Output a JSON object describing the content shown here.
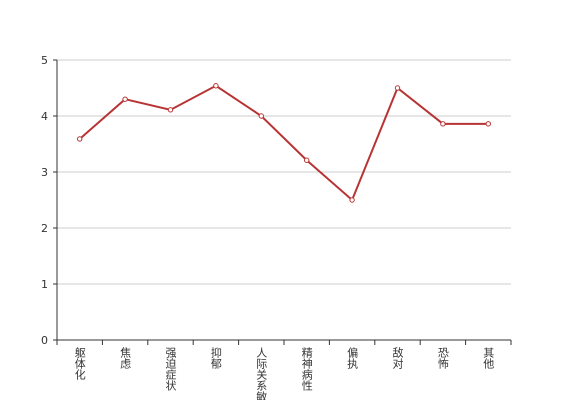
{
  "chart_data": {
    "type": "line",
    "categories": [
      "躯体化",
      "焦虑",
      "强迫症状",
      "抑郁",
      "人际关系敏感",
      "精神病性",
      "偏执",
      "敌对",
      "恐怖",
      "其他"
    ],
    "series": [
      {
        "color": "#b83434",
        "values": [
          3.59,
          4.3,
          4.11,
          4.54,
          4.0,
          3.21,
          2.5,
          4.5,
          3.86,
          3.86
        ]
      }
    ],
    "ylim": [
      0,
      5
    ],
    "yticks": [
      0,
      1,
      2,
      3,
      4,
      5
    ],
    "grid": true
  }
}
